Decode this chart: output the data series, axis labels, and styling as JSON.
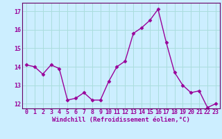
{
  "x": [
    0,
    1,
    2,
    3,
    4,
    5,
    6,
    7,
    8,
    9,
    10,
    11,
    12,
    13,
    14,
    15,
    16,
    17,
    18,
    19,
    20,
    21,
    22,
    23
  ],
  "y": [
    14.1,
    14.0,
    13.6,
    14.1,
    13.9,
    12.2,
    12.3,
    12.6,
    12.2,
    12.2,
    13.2,
    14.0,
    14.3,
    15.8,
    16.1,
    16.5,
    17.1,
    15.3,
    13.7,
    13.0,
    12.6,
    12.7,
    11.8,
    12.0
  ],
  "line_color": "#990099",
  "marker": "D",
  "markersize": 2.5,
  "linewidth": 1.0,
  "xlim": [
    -0.5,
    23.5
  ],
  "ylim": [
    11.75,
    17.45
  ],
  "yticks": [
    12,
    13,
    14,
    15,
    16,
    17
  ],
  "xticks": [
    0,
    1,
    2,
    3,
    4,
    5,
    6,
    7,
    8,
    9,
    10,
    11,
    12,
    13,
    14,
    15,
    16,
    17,
    18,
    19,
    20,
    21,
    22,
    23
  ],
  "xlabel": "Windchill (Refroidissement éolien,°C)",
  "xlabel_fontsize": 6.5,
  "tick_fontsize": 6.0,
  "background_color": "#cceeff",
  "grid_color": "#aadddd",
  "spine_color": "#660066"
}
